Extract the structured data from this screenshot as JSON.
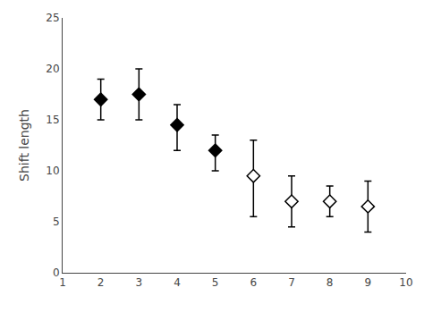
{
  "chart_data": {
    "type": "scatter",
    "ylabel": "Shift length",
    "series": [
      {
        "color": "#000000",
        "marker": "diamond",
        "x": [
          2,
          3,
          4,
          5
        ],
        "values": [
          17.0,
          17.5,
          14.5,
          12.0
        ],
        "error_lower": [
          2.0,
          2.5,
          2.5,
          2.0
        ],
        "error_upper": [
          2.0,
          2.5,
          2.0,
          1.5
        ]
      },
      {
        "color": "#000000",
        "marker": "diamond-open",
        "x": [
          6,
          7,
          8,
          9
        ],
        "values": [
          9.5,
          7.0,
          7.0,
          6.5
        ],
        "error_lower": [
          4.0,
          2.5,
          1.5,
          2.5
        ],
        "error_upper": [
          3.5,
          2.5,
          1.5,
          2.5
        ]
      }
    ],
    "xlim": [
      1,
      10
    ],
    "ylim": [
      0,
      25
    ],
    "xticks": [
      1,
      2,
      3,
      4,
      5,
      6,
      7,
      8,
      9,
      10
    ],
    "yticks": [
      0,
      5,
      10,
      15,
      20,
      25
    ],
    "grid": false
  }
}
